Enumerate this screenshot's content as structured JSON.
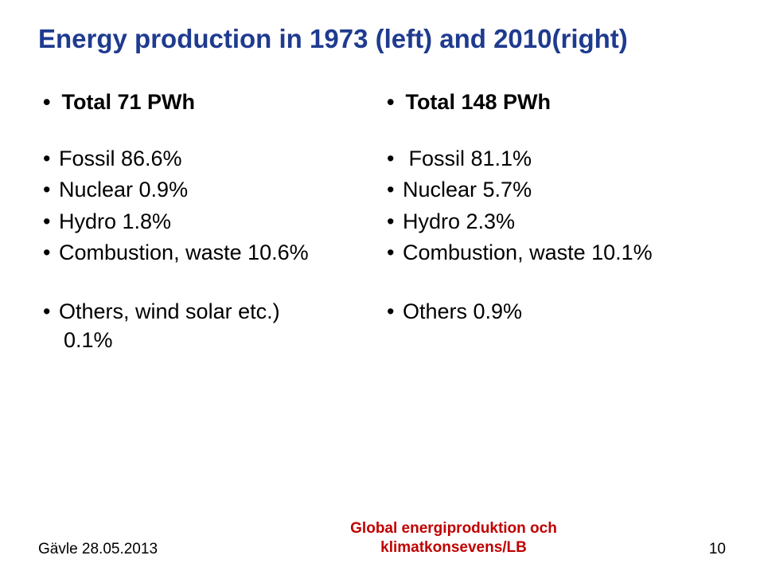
{
  "title": {
    "text": "Energy production in 1973 (left) and 2010(right)",
    "color": "#1f3b8f",
    "fontsize": 33,
    "weight": "bold"
  },
  "left": {
    "total": "Total 71 PWh",
    "items": [
      "Fossil 86.6%",
      "Nuclear 0.9%",
      "Hydro 1.8%",
      "Combustion, waste 10.6%"
    ],
    "others_line1": "Others, wind solar etc.)",
    "others_line2": "0.1%"
  },
  "right": {
    "total": "Total 148 PWh",
    "items": [
      " Fossil 81.1%",
      "Nuclear 5.7%",
      "Hydro 2.3%",
      "Combustion, waste 10.1%"
    ],
    "others": "Others 0.9%"
  },
  "footer": {
    "left": "Gävle 28.05.2013",
    "center_line1": "Global energiproduktion och",
    "center_line2": "klimatkonsevens/LB",
    "center_color": "#c00000",
    "page": "10"
  },
  "colors": {
    "text": "#000000",
    "background": "#ffffff"
  },
  "typography": {
    "body_fontsize": 27,
    "footer_fontsize": 19,
    "font_family": "Arial"
  }
}
